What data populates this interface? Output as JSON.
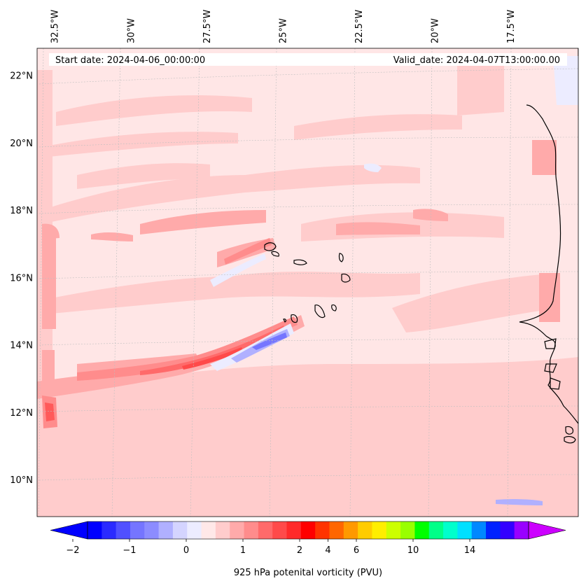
{
  "chart_data": {
    "type": "filled-contour-map",
    "variable": "925 hPa potenital vorticity (PVU)",
    "start_date_label": "Start date: 2024-04-06_00:00:00",
    "valid_date_label": "Valid_date: 2024-04-07T13:00:00.00",
    "lon_ticks": [
      {
        "value": -32.5,
        "label": "32.5°W"
      },
      {
        "value": -30.0,
        "label": "30°W"
      },
      {
        "value": -27.5,
        "label": "27.5°W"
      },
      {
        "value": -25.0,
        "label": "25°W"
      },
      {
        "value": -22.5,
        "label": "22.5°W"
      },
      {
        "value": -20.0,
        "label": "20°W"
      },
      {
        "value": -17.5,
        "label": "17.5°W"
      }
    ],
    "lat_ticks": [
      {
        "value": 22,
        "label": "22°N"
      },
      {
        "value": 20,
        "label": "20°N"
      },
      {
        "value": 18,
        "label": "18°N"
      },
      {
        "value": 16,
        "label": "16°N"
      },
      {
        "value": 14,
        "label": "14°N"
      },
      {
        "value": 12,
        "label": "12°N"
      },
      {
        "value": 10,
        "label": "10°N"
      }
    ],
    "lon_range": [
      -33.0,
      -15.2
    ],
    "lat_range": [
      8.9,
      22.8
    ],
    "colorbar": {
      "extend": "both",
      "levels": [
        "-2",
        "-1.75",
        "-1.5",
        "-1.25",
        "-1",
        "-0.75",
        "-0.5",
        "-0.25",
        "0",
        "0.25",
        "0.5",
        "0.75",
        "1",
        "1.25",
        "1.5",
        "1.75",
        "2",
        "3",
        "4",
        "5",
        "6",
        "7",
        "8",
        "9",
        "10",
        "11",
        "12",
        "13",
        "14",
        "15"
      ],
      "tick_labels": [
        "−2",
        "−1",
        "0",
        "1",
        "2",
        "4",
        "6",
        "10",
        "14"
      ],
      "colors": [
        "#0000ff",
        "#2a2aff",
        "#5050ff",
        "#7575ff",
        "#8c8cff",
        "#b0b0ff",
        "#d4d4ff",
        "#ececff",
        "#ffe8e8",
        "#ffcccc",
        "#ffaaaa",
        "#ff8c8c",
        "#ff6a6a",
        "#ff4a4a",
        "#ff2a2a",
        "#ff0000",
        "#ff3300",
        "#ff6600",
        "#ff9900",
        "#ffcc00",
        "#ffee00",
        "#ccff00",
        "#99ff00",
        "#00ff00",
        "#00ff88",
        "#00ffcc",
        "#00e0ff",
        "#0088ff",
        "#0022ff",
        "#3300ff",
        "#9900ff"
      ],
      "under_color": "#0000ff",
      "over_color": "#cc00ff"
    },
    "features": [
      {
        "name": "Cape Verde Islands",
        "kind": "land"
      },
      {
        "name": "West African coast",
        "kind": "land"
      }
    ],
    "annotations": [
      "negative PV band near 14°N 24.5°W",
      "positive PV band along 12–15°N from 33°W to 24°W"
    ]
  }
}
